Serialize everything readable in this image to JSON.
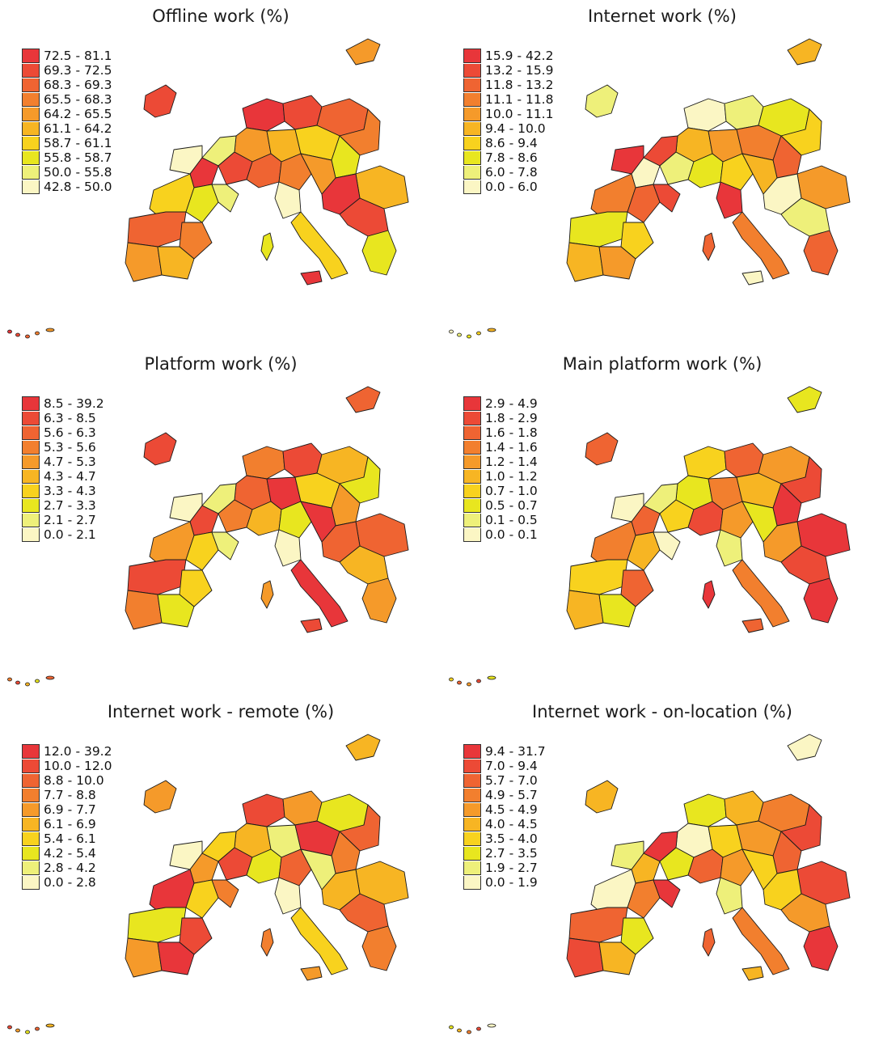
{
  "panels": [
    {
      "title": "Offline work (%)",
      "legend": [
        "72.5 - 81.1",
        "69.3 - 72.5",
        "68.3 - 69.3",
        "65.5 - 68.3",
        "64.2 - 65.5",
        "61.1 - 64.2",
        "58.7 - 61.1",
        "55.8 - 58.7",
        "50.0 - 55.8",
        "42.8 - 50.0"
      ]
    },
    {
      "title": "Internet work (%)",
      "legend": [
        "15.9 - 42.2",
        "13.2 - 15.9",
        "11.8 - 13.2",
        "11.1 - 11.8",
        "10.0 - 11.1",
        "9.4 - 10.0",
        "8.6 - 9.4",
        "7.8 - 8.6",
        "6.0 - 7.8",
        "0.0 - 6.0"
      ]
    },
    {
      "title": "Platform work (%)",
      "legend": [
        "8.5 - 39.2",
        "6.3 - 8.5",
        "5.6 - 6.3",
        "5.3 - 5.6",
        "4.7 - 5.3",
        "4.3 - 4.7",
        "3.3 - 4.3",
        "2.7 - 3.3",
        "2.1 - 2.7",
        "0.0 - 2.1"
      ]
    },
    {
      "title": "Main platform work (%)",
      "legend": [
        "2.9 - 4.9",
        "1.8 - 2.9",
        "1.6 - 1.8",
        "1.4 - 1.6",
        "1.2 - 1.4",
        "1.0 - 1.2",
        "0.7 - 1.0",
        "0.5 - 0.7",
        "0.1 - 0.5",
        "0.0 - 0.1"
      ]
    },
    {
      "title": "Internet work - remote (%)",
      "legend": [
        "12.0 - 39.2",
        "10.0 - 12.0",
        "8.8 - 10.0",
        "7.7 - 8.8",
        "6.9 - 7.7",
        "6.1 - 6.9",
        "5.4 - 6.1",
        "4.2 - 5.4",
        "2.8 - 4.2",
        "0.0 - 2.8"
      ]
    },
    {
      "title": "Internet work - on-location (%)",
      "legend": [
        "9.4 - 31.7",
        "7.0 - 9.4",
        "5.7 - 7.0",
        "4.9 - 5.7",
        "4.5 - 4.9",
        "4.0 - 4.5",
        "3.5 - 4.0",
        "2.7 - 3.5",
        "1.9 - 2.7",
        "0.0 - 1.9"
      ]
    }
  ],
  "palette": [
    "#e8363a",
    "#ec4a36",
    "#ef6432",
    "#f27f2e",
    "#f59a2a",
    "#f7b523",
    "#f8d21e",
    "#e8e61f",
    "#eef07a",
    "#fbf6c4"
  ],
  "region_classes": [
    [
      0,
      1,
      2,
      3,
      4,
      5,
      6,
      7,
      8,
      9,
      0,
      1,
      2,
      3,
      4,
      5,
      6,
      7,
      8,
      9,
      0,
      1,
      2,
      3,
      4,
      5,
      6,
      7
    ],
    [
      9,
      8,
      7,
      6,
      5,
      4,
      3,
      2,
      1,
      0,
      9,
      8,
      7,
      6,
      5,
      4,
      3,
      2,
      1,
      0,
      9,
      8,
      7,
      6,
      5,
      4,
      3,
      2
    ],
    [
      3,
      1,
      5,
      7,
      2,
      0,
      6,
      4,
      8,
      9,
      1,
      3,
      5,
      7,
      0,
      2,
      4,
      6,
      8,
      9,
      2,
      5,
      1,
      6,
      3,
      7,
      0,
      4
    ],
    [
      6,
      2,
      4,
      1,
      7,
      3,
      5,
      0,
      8,
      9,
      2,
      6,
      1,
      4,
      7,
      0,
      3,
      5,
      9,
      8,
      4,
      1,
      6,
      2,
      5,
      7,
      3,
      0
    ],
    [
      1,
      4,
      7,
      2,
      5,
      8,
      0,
      3,
      6,
      9,
      4,
      1,
      7,
      2,
      8,
      5,
      0,
      6,
      3,
      9,
      5,
      2,
      7,
      1,
      4,
      0,
      6,
      3
    ],
    [
      7,
      5,
      3,
      1,
      9,
      6,
      4,
      2,
      0,
      8,
      5,
      7,
      2,
      4,
      6,
      1,
      9,
      3,
      0,
      8,
      6,
      4,
      2,
      7,
      1,
      5,
      3,
      0
    ]
  ]
}
